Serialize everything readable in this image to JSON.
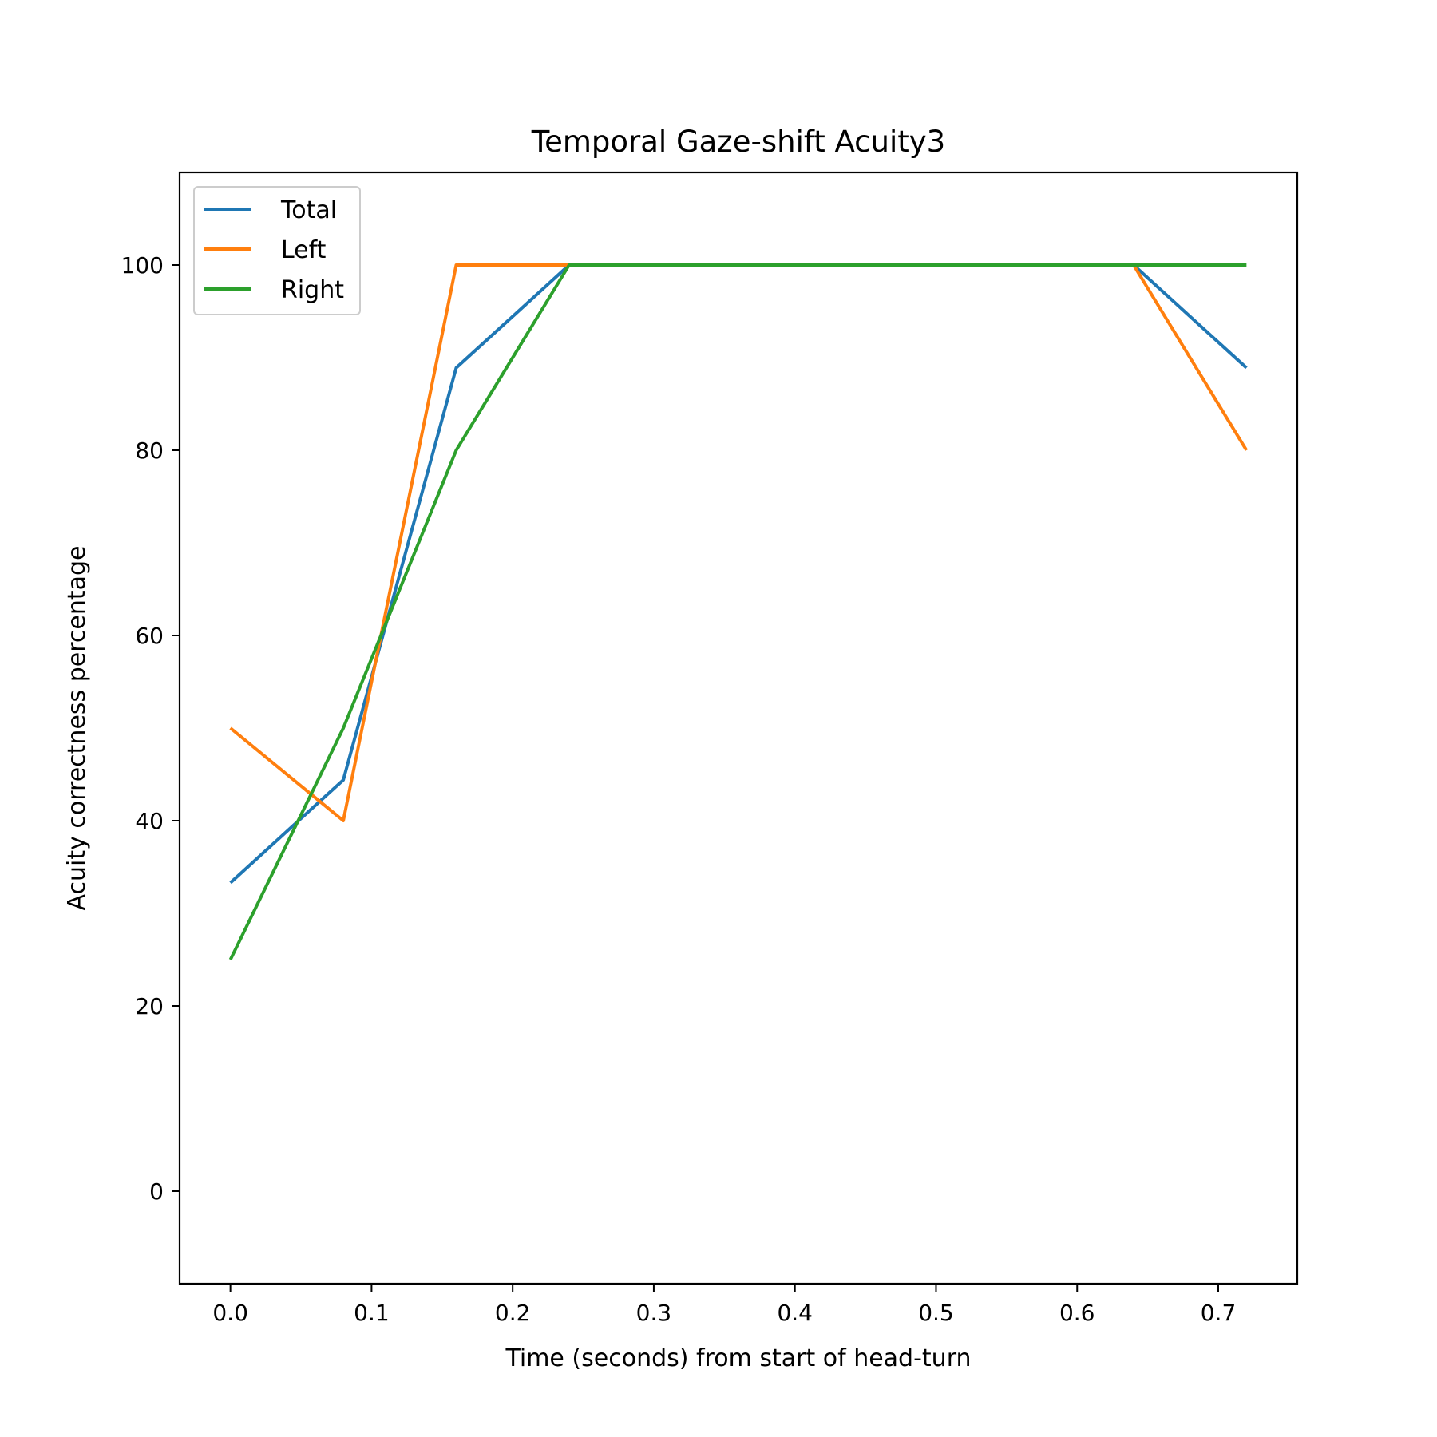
{
  "chart_data": {
    "type": "line",
    "title": "Temporal Gaze-shift Acuity3",
    "xlabel": "Time (seconds) from start of head-turn",
    "ylabel": "Acuity correctness percentage",
    "xlim": [
      -0.036,
      0.756
    ],
    "ylim": [
      -10,
      110
    ],
    "xticks": [
      0.0,
      0.1,
      0.2,
      0.3,
      0.4,
      0.5,
      0.6,
      0.7
    ],
    "xtick_labels": [
      "0.0",
      "0.1",
      "0.2",
      "0.3",
      "0.4",
      "0.5",
      "0.6",
      "0.7"
    ],
    "yticks": [
      0,
      20,
      40,
      60,
      80,
      100
    ],
    "ytick_labels": [
      "0",
      "20",
      "40",
      "60",
      "80",
      "100"
    ],
    "grid": false,
    "legend_position": "top-left",
    "x": [
      0.0,
      0.08,
      0.16,
      0.24,
      0.32,
      0.4,
      0.48,
      0.56,
      0.64,
      0.72
    ],
    "series": [
      {
        "name": "Total",
        "color": "#1f77b4",
        "values": [
          33.3,
          44.4,
          88.9,
          100,
          100,
          100,
          100,
          100,
          100,
          88.9
        ]
      },
      {
        "name": "Left",
        "color": "#ff7f0e",
        "values": [
          50,
          40,
          100,
          100,
          100,
          100,
          100,
          100,
          100,
          80
        ]
      },
      {
        "name": "Right",
        "color": "#2ca02c",
        "values": [
          25,
          50,
          80,
          100,
          100,
          100,
          100,
          100,
          100,
          100
        ]
      }
    ]
  }
}
